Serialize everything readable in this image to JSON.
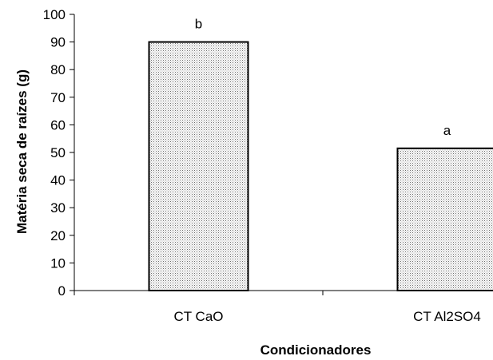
{
  "chart_data": {
    "type": "bar",
    "title": "",
    "xlabel": "Condicionadores",
    "ylabel": "Matéria seca de raízes (g)",
    "categories": [
      "CT CaO",
      "CT Al2SO4"
    ],
    "values": [
      90,
      51.5
    ],
    "data_labels": [
      "b",
      "a"
    ],
    "ylim": [
      0,
      100
    ],
    "yticks": [
      "0",
      "10",
      "20",
      "30",
      "40",
      "50",
      "60",
      "70",
      "80",
      "90",
      "100"
    ],
    "grid": false,
    "legend": "none",
    "bar_fill": "dotted-pattern",
    "colors": {
      "bar_fill": "#ffffff",
      "bar_dots": "#000000",
      "bar_edge": "#000000",
      "axis": "#000000"
    }
  }
}
